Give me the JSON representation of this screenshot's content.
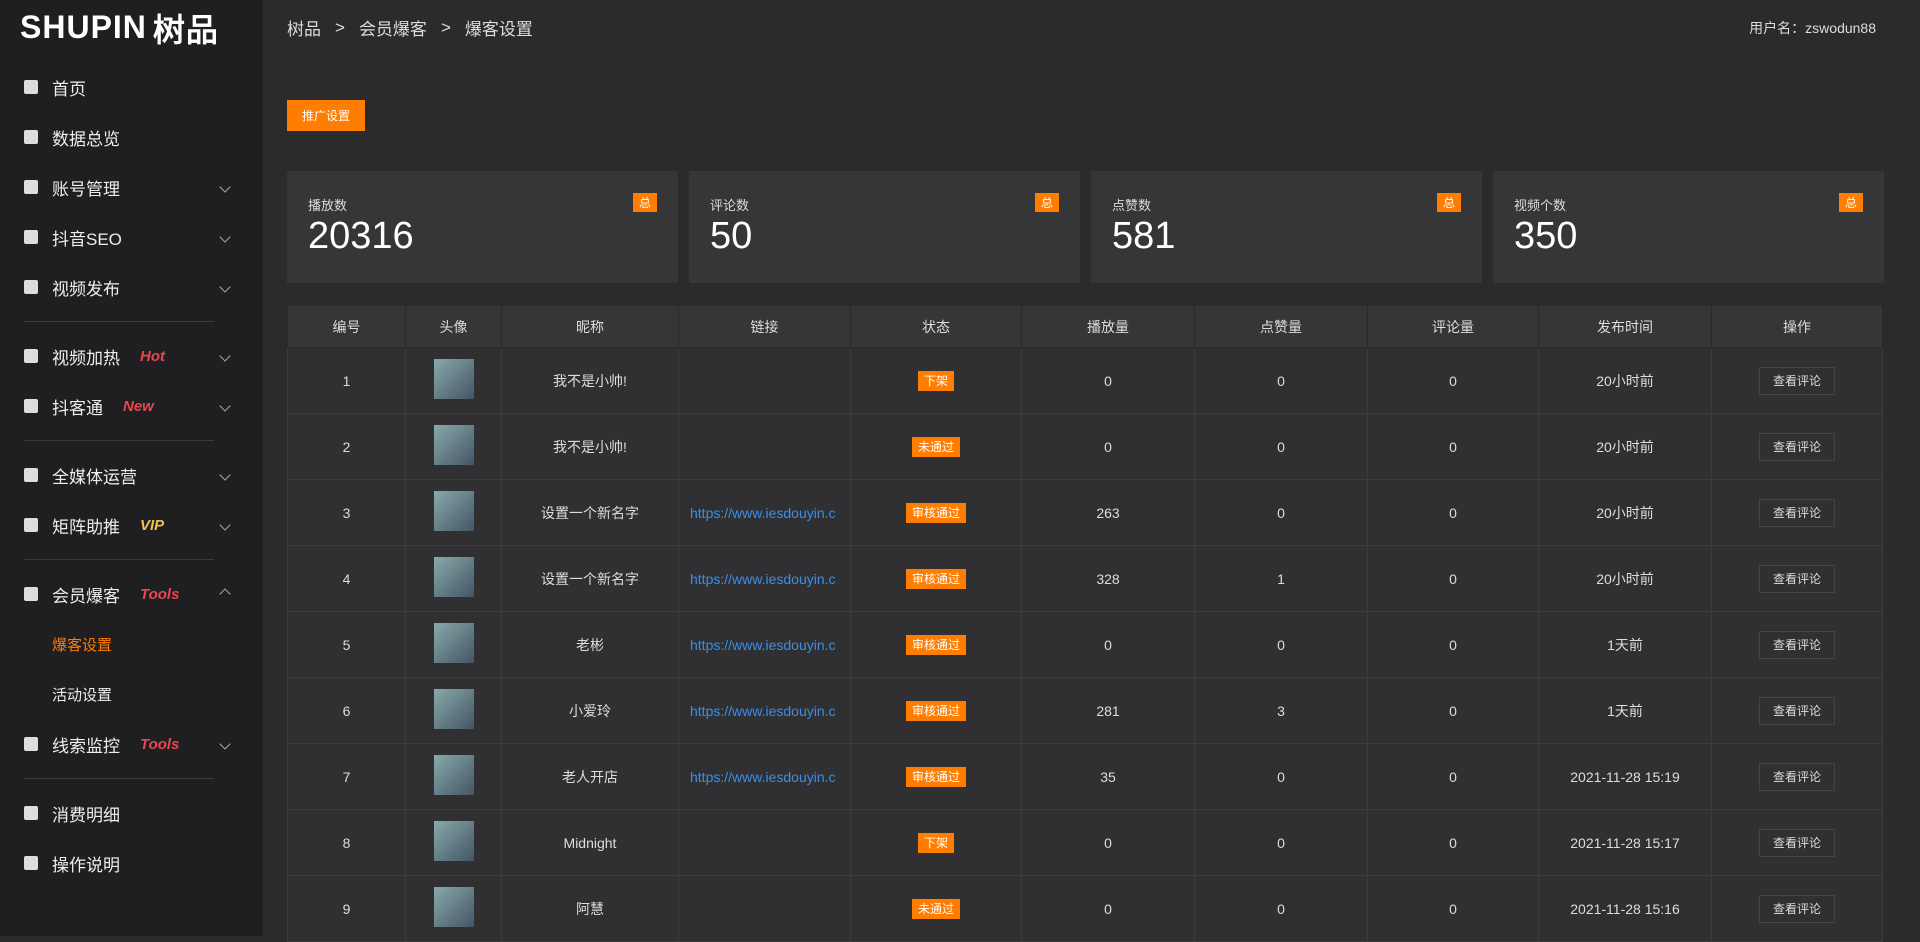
{
  "sidebar": {
    "logo": {
      "latin": "SHUPIN",
      "chinese": "树品"
    },
    "groups": [
      [
        {
          "label": "首页"
        },
        {
          "label": "数据总览"
        },
        {
          "label": "账号管理",
          "arrow": true
        },
        {
          "label": "抖音SEO",
          "arrow": true
        },
        {
          "label": "视频发布",
          "arrow": true
        }
      ],
      [
        {
          "label": "视频加热",
          "tag": "Hot",
          "arrow": true
        },
        {
          "label": "抖客通",
          "tag": "New",
          "arrow": true
        }
      ],
      [
        {
          "label": "全媒体运营",
          "arrow": true
        },
        {
          "label": "矩阵助推",
          "tag": "VIP",
          "arrow": true
        }
      ],
      [
        {
          "label": "会员爆客",
          "tag": "Tools",
          "arrow": true,
          "open": true,
          "children": [
            {
              "label": "爆客设置",
              "active": true
            },
            {
              "label": "活动设置"
            }
          ]
        },
        {
          "label": "线索监控",
          "tag": "Tools",
          "arrow": true
        }
      ],
      [
        {
          "label": "消费明细"
        },
        {
          "label": "操作说明"
        }
      ]
    ]
  },
  "header": {
    "breadcrumb": [
      "树品",
      ">",
      "会员爆客",
      ">",
      "爆客设置"
    ],
    "user": "用户名：zswodun88"
  },
  "button": "推广设置",
  "stats": [
    {
      "label": "播放数",
      "badge": "总",
      "value": 20316
    },
    {
      "label": "评论数",
      "badge": "总",
      "value": 50
    },
    {
      "label": "点赞数",
      "badge": "总",
      "value": 581
    },
    {
      "label": "视频个数",
      "badge": "总",
      "value": 350
    }
  ],
  "table": {
    "columns": [
      "编号",
      "头像",
      "昵称",
      "链接",
      "状态",
      "播放量",
      "点赞量",
      "评论量",
      "发布时间",
      "操作"
    ],
    "rows": [
      [
        1,
        "我不是小帅!",
        "",
        "下架",
        0,
        0,
        0,
        "20小时前",
        "查看评论"
      ],
      [
        2,
        "我不是小帅!",
        "",
        "未通过",
        0,
        0,
        0,
        "20小时前",
        "查看评论"
      ],
      [
        3,
        "设置一个新名字",
        "https://www.iesdouyin.c",
        "审核通过",
        263,
        0,
        0,
        "20小时前",
        "查看评论"
      ],
      [
        4,
        "设置一个新名字",
        "https://www.iesdouyin.c",
        "审核通过",
        328,
        1,
        0,
        "20小时前",
        "查看评论"
      ],
      [
        5,
        "老彬",
        "https://www.iesdouyin.c",
        "审核通过",
        0,
        0,
        0,
        "1天前",
        "查看评论"
      ],
      [
        6,
        "小爱玲",
        "https://www.iesdouyin.c",
        "审核通过",
        281,
        3,
        0,
        "1天前",
        "查看评论"
      ],
      [
        7,
        "老人开店",
        "https://www.iesdouyin.c",
        "审核通过",
        35,
        0,
        0,
        "2021-11-28 15:19",
        "查看评论"
      ],
      [
        8,
        "Midnight",
        "",
        "下架",
        0,
        0,
        0,
        "2021-11-28 15:17",
        "查看评论"
      ],
      [
        9,
        "阿慧",
        "",
        "未通过",
        0,
        0,
        0,
        "2021-11-28 15:16",
        "查看评论"
      ]
    ]
  }
}
